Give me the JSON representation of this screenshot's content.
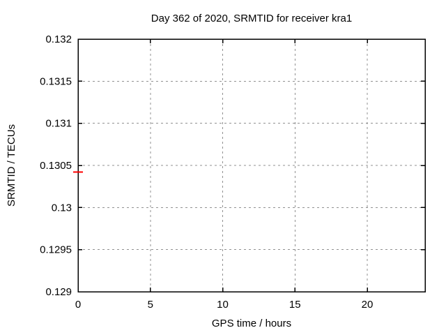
{
  "figure": {
    "background": "#ffffff",
    "text_color": "#000000"
  },
  "chart_data": {
    "type": "scatter",
    "title": "Day 362 of 2020, SRMTID for receiver kra1",
    "xlabel": "GPS time / hours",
    "ylabel": "SRMTID / TECUs",
    "xlim": [
      0,
      24
    ],
    "ylim": [
      0.129,
      0.132
    ],
    "xticks": [
      0,
      5,
      10,
      15,
      20
    ],
    "xtick_labels": [
      "0",
      "5",
      "10",
      "15",
      "20"
    ],
    "yticks": [
      0.129,
      0.1295,
      0.13,
      0.1305,
      0.131,
      0.1315,
      0.132
    ],
    "ytick_labels": [
      "0.129",
      "0.1295",
      "0.13",
      "0.1305",
      "0.131",
      "0.1315",
      "0.132"
    ],
    "grid": true,
    "grid_color": "#909090",
    "border_color": "#000000",
    "legend": "none",
    "series": [
      {
        "name": "SRMTID",
        "color": "#ff0000",
        "marker": "horizontal-dash",
        "points": [
          {
            "x": 0,
            "y": 0.13042
          }
        ]
      }
    ]
  }
}
